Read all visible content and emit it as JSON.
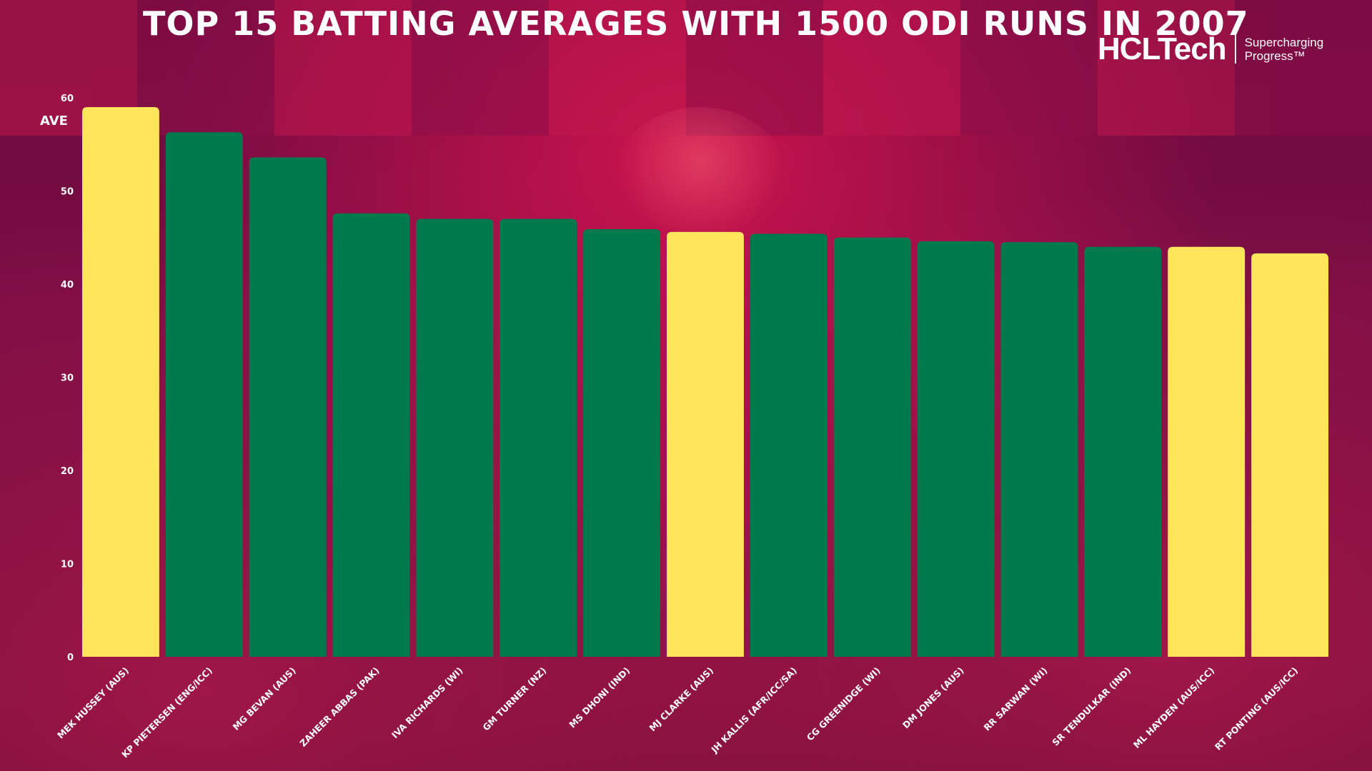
{
  "header": {
    "title": "TOP 15 BATTING AVERAGES WITH 1500 ODI RUNS IN 2007"
  },
  "logo": {
    "brand": "HCLTech",
    "tagline_line1": "Supercharging",
    "tagline_line2": "Progress™"
  },
  "colors": {
    "highlight": "#ffe45c",
    "default": "#007a4d",
    "text": "#ffffff"
  },
  "chart_data": {
    "type": "bar",
    "title": "TOP 15 BATTING AVERAGES WITH 1500 ODI RUNS IN 2007",
    "xlabel": "",
    "ylabel": "AVE",
    "ylim": [
      0,
      60
    ],
    "yticks": [
      0,
      10,
      20,
      30,
      40,
      50,
      60
    ],
    "grid": false,
    "categories": [
      "MEK HUSSEY (AUS)",
      "KP PIETERSEN (ENG/ICC)",
      "MG BEVAN (AUS)",
      "ZAHEER ABBAS (PAK)",
      "IVA RICHARDS (WI)",
      "GM TURNER (NZ)",
      "MS DHONI (IND)",
      "MJ CLARKE (AUS)",
      "JH KALLIS (AFR/ICC/SA)",
      "CG GREENIDGE (WI)",
      "DM JONES (AUS)",
      "RR SARWAN (WI)",
      "SR TENDULKAR (IND)",
      "ML HAYDEN (AUS/ICC)",
      "RT PONTING (AUS/ICC)"
    ],
    "values": [
      59.0,
      56.3,
      53.6,
      47.6,
      47.0,
      47.0,
      45.9,
      45.6,
      45.4,
      45.0,
      44.6,
      44.5,
      44.0,
      44.0,
      43.3
    ],
    "highlighted": [
      true,
      false,
      false,
      false,
      false,
      false,
      false,
      true,
      false,
      false,
      false,
      false,
      false,
      true,
      true
    ]
  }
}
